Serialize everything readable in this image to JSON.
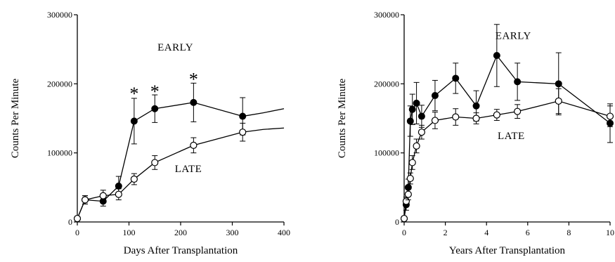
{
  "chart_data": [
    {
      "type": "line",
      "title": "",
      "xlabel": "Days After Transplantation",
      "ylabel": "Counts Per Minute",
      "xlim": [
        0,
        400
      ],
      "ylim": [
        0,
        300000
      ],
      "xticks": [
        0,
        100,
        200,
        300,
        400
      ],
      "xtick_labels": [
        "0",
        "100",
        "200",
        "300",
        "400"
      ],
      "yticks": [
        0,
        100000,
        200000,
        300000
      ],
      "ytick_labels": [
        "0",
        "100000",
        "200000",
        "300000"
      ],
      "grid": false,
      "series": [
        {
          "name": "EARLY",
          "marker": "filled-circle",
          "x": [
            0,
            15,
            50,
            80,
            110,
            150,
            225,
            320
          ],
          "y": [
            5000,
            32000,
            30000,
            52000,
            146000,
            164000,
            173000,
            153000
          ],
          "err": [
            0,
            6000,
            7000,
            14000,
            33000,
            20000,
            28000,
            27000
          ],
          "tail": {
            "x": [
              320,
              360,
              400
            ],
            "y": [
              153000,
              158000,
              164000
            ]
          }
        },
        {
          "name": "LATE",
          "marker": "open-circle",
          "x": [
            0,
            15,
            50,
            80,
            110,
            150,
            225,
            320
          ],
          "y": [
            5000,
            32000,
            38000,
            40000,
            62000,
            86000,
            111000,
            130000
          ],
          "err": [
            0,
            6000,
            8000,
            8000,
            8000,
            10000,
            11000,
            13000
          ],
          "tail": {
            "x": [
              320,
              360,
              400
            ],
            "y": [
              130000,
              134000,
              136000
            ]
          }
        }
      ],
      "annotations": [
        {
          "text": "*",
          "x": 110,
          "y": 187000
        },
        {
          "text": "*",
          "x": 150,
          "y": 190000
        },
        {
          "text": "*",
          "x": 225,
          "y": 208000
        },
        {
          "text": "EARLY",
          "x": 190,
          "y": 248000
        },
        {
          "text": "LATE",
          "x": 215,
          "y": 72000
        }
      ]
    },
    {
      "type": "line",
      "title": "",
      "xlabel": "Years After Transplantation",
      "ylabel": "Counts Per Minute",
      "xlim": [
        0,
        10
      ],
      "ylim": [
        0,
        300000
      ],
      "xticks": [
        0,
        2,
        4,
        6,
        8,
        10
      ],
      "xtick_labels": [
        "0",
        "2",
        "4",
        "6",
        "8",
        "10"
      ],
      "yticks": [
        0,
        100000,
        200000,
        300000
      ],
      "ytick_labels": [
        "0",
        "100000",
        "200000",
        "300000"
      ],
      "grid": false,
      "series": [
        {
          "name": "EARLY",
          "marker": "filled-circle",
          "x": [
            0,
            0.1,
            0.2,
            0.3,
            0.4,
            0.6,
            0.85,
            1.5,
            2.5,
            3.5,
            4.5,
            5.5,
            7.5,
            10
          ],
          "y": [
            5000,
            25000,
            50000,
            146000,
            163000,
            172000,
            153000,
            183000,
            208000,
            168000,
            241000,
            203000,
            200000,
            143000
          ],
          "err": [
            0,
            8000,
            12000,
            22000,
            22000,
            30000,
            16000,
            22000,
            22000,
            22000,
            45000,
            27000,
            45000,
            28000
          ]
        },
        {
          "name": "LATE",
          "marker": "open-circle",
          "x": [
            0,
            0.1,
            0.2,
            0.3,
            0.4,
            0.6,
            0.85,
            1.5,
            2.5,
            3.5,
            4.5,
            5.5,
            7.5,
            10
          ],
          "y": [
            5000,
            30000,
            40000,
            63000,
            86000,
            110000,
            130000,
            147000,
            152000,
            150000,
            155000,
            160000,
            175000,
            153000
          ],
          "err": [
            0,
            6000,
            8000,
            8000,
            10000,
            10000,
            10000,
            12000,
            12000,
            8000,
            8000,
            10000,
            18000,
            15000
          ]
        }
      ],
      "annotations": [
        {
          "text": "EARLY",
          "x": 5.3,
          "y": 265000
        },
        {
          "text": "LATE",
          "x": 5.2,
          "y": 120000
        }
      ]
    }
  ]
}
